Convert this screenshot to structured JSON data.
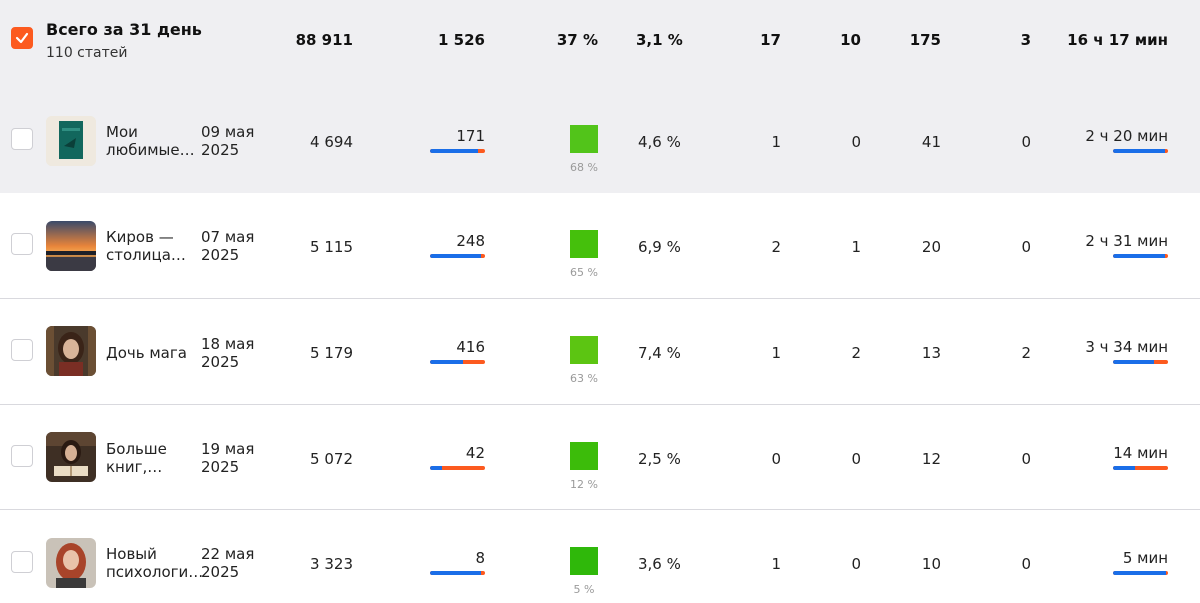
{
  "summary": {
    "title": "Всего за 31 день",
    "subtitle": "110 статей",
    "c1": "88 911",
    "c2": "1 526",
    "c3": "37 %",
    "c4": "3,1 %",
    "c5": "17",
    "c6": "10",
    "c7": "175",
    "c8": "3",
    "c9": "16 ч 17 мин"
  },
  "rows": [
    {
      "title": "Мои любимые…",
      "date": "09 мая 2025",
      "views": "4 694",
      "reads": "171",
      "reads_bar_fraction": 0.88,
      "share_label": "68 %",
      "share_color": "#52c41a",
      "ctr": "4,6 %",
      "c5": "1",
      "c6": "0",
      "c7": "41",
      "c8": "0",
      "time": "2 ч 20 мин",
      "time_bar_fraction": 0.94
    },
    {
      "title": "Киров — столица…",
      "date": "07 мая 2025",
      "views": "5 115",
      "reads": "248",
      "reads_bar_fraction": 0.92,
      "share_label": "65 %",
      "share_color": "#45c00c",
      "ctr": "6,9 %",
      "c5": "2",
      "c6": "1",
      "c7": "20",
      "c8": "0",
      "time": "2 ч 31 мин",
      "time_bar_fraction": 0.94
    },
    {
      "title": "Дочь мага",
      "date": "18 мая 2025",
      "views": "5 179",
      "reads": "416",
      "reads_bar_fraction": 0.6,
      "share_label": "63 %",
      "share_color": "#5cc512",
      "ctr": "7,4 %",
      "c5": "1",
      "c6": "2",
      "c7": "13",
      "c8": "2",
      "time": "3 ч 34 мин",
      "time_bar_fraction": 0.75
    },
    {
      "title": "Больше книг,…",
      "date": "19 мая 2025",
      "views": "5 072",
      "reads": "42",
      "reads_bar_fraction": 0.22,
      "share_label": "12 %",
      "share_color": "#3cbc0a",
      "ctr": "2,5 %",
      "c5": "0",
      "c6": "0",
      "c7": "12",
      "c8": "0",
      "time": "14 мин",
      "time_bar_fraction": 0.4
    },
    {
      "title": "Новый психологи…",
      "date": "22 мая 2025",
      "views": "3 323",
      "reads": "8",
      "reads_bar_fraction": 0.92,
      "share_label": "5 %",
      "share_color": "#2fb80a",
      "ctr": "3,6 %",
      "c5": "1",
      "c6": "0",
      "c7": "10",
      "c8": "0",
      "time": "5 мин",
      "time_bar_fraction": 0.97
    }
  ],
  "colors": {
    "accent": "#fc5a1f",
    "blue": "#1a6ee8"
  }
}
